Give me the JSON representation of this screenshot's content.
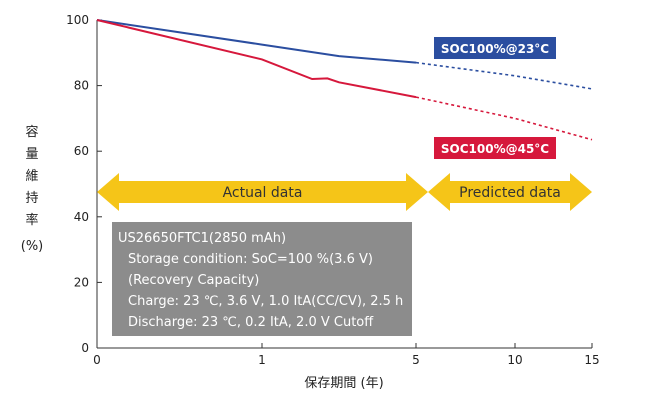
{
  "chart_data": {
    "type": "line",
    "title": "",
    "xlabel": "保存期間 (年)",
    "ylabel_chars": [
      "容",
      "量",
      "維",
      "持",
      "率"
    ],
    "ylabel_unit": "(%)",
    "x_ticks": [
      "0",
      "1",
      "5",
      "10",
      "15"
    ],
    "x_tick_positions_years": [
      0,
      1,
      5,
      10,
      15
    ],
    "y_ticks": [
      "0",
      "20",
      "40",
      "60",
      "80",
      "100"
    ],
    "ylim": [
      0,
      100
    ],
    "xlim_years": [
      0,
      15
    ],
    "grid": false,
    "series": [
      {
        "name": "SOC100%@23°C",
        "color": "#2b4ea0",
        "actual": [
          [
            0,
            100
          ],
          [
            1,
            92.5
          ],
          [
            3,
            89
          ],
          [
            5,
            87
          ]
        ],
        "predicted": [
          [
            5,
            87
          ],
          [
            10,
            83
          ],
          [
            15,
            79
          ]
        ]
      },
      {
        "name": "SOC100%@45°C",
        "color": "#d6183c",
        "actual": [
          [
            0,
            100
          ],
          [
            1,
            88
          ],
          [
            2.3,
            82
          ],
          [
            2.7,
            82.2
          ],
          [
            3,
            81
          ],
          [
            5,
            76.5
          ]
        ],
        "predicted": [
          [
            5,
            76.5
          ],
          [
            10,
            70
          ],
          [
            15,
            63.5
          ]
        ]
      }
    ],
    "annotations": {
      "actual_label": "Actual data",
      "predicted_label": "Predicted data",
      "arrow_color": "#f5c518",
      "info_box_bg": "#8c8c8c",
      "info_lines": [
        "US26650FTC1(2850 mAh)",
        "Storage condition: SoC=100 %(3.6 V)",
        "(Recovery Capacity)",
        "Charge: 23 ℃, 3.6 V, 1.0 ItA(CC/CV), 2.5 h",
        "Discharge: 23 ℃, 0.2 ItA, 2.0 V Cutoff"
      ]
    }
  }
}
